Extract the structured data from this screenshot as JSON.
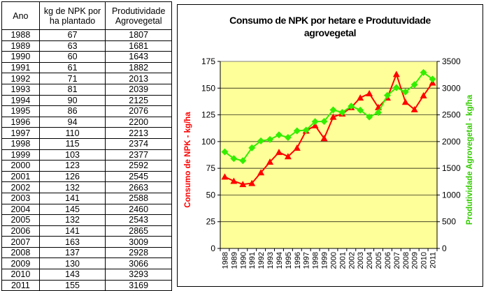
{
  "table": {
    "headers": [
      "Ano",
      "kg de NPK por ha plantado",
      "Produtividade Agrovegetal"
    ],
    "rows": [
      [
        "1988",
        "67",
        "1807"
      ],
      [
        "1989",
        "63",
        "1681"
      ],
      [
        "1990",
        "60",
        "1643"
      ],
      [
        "1991",
        "61",
        "1882"
      ],
      [
        "1992",
        "71",
        "2013"
      ],
      [
        "1993",
        "81",
        "2039"
      ],
      [
        "1994",
        "90",
        "2125"
      ],
      [
        "1995",
        "86",
        "2076"
      ],
      [
        "1996",
        "94",
        "2200"
      ],
      [
        "1997",
        "110",
        "2213"
      ],
      [
        "1998",
        "115",
        "2374"
      ],
      [
        "1999",
        "103",
        "2377"
      ],
      [
        "2000",
        "123",
        "2592"
      ],
      [
        "2001",
        "126",
        "2545"
      ],
      [
        "2002",
        "132",
        "2663"
      ],
      [
        "2003",
        "141",
        "2588"
      ],
      [
        "2004",
        "145",
        "2460"
      ],
      [
        "2005",
        "132",
        "2543"
      ],
      [
        "2006",
        "141",
        "2865"
      ],
      [
        "2007",
        "163",
        "3009"
      ],
      [
        "2008",
        "137",
        "2928"
      ],
      [
        "2009",
        "130",
        "3066"
      ],
      [
        "2010",
        "143",
        "3293"
      ],
      [
        "2011",
        "155",
        "3169"
      ]
    ]
  },
  "chart_data": {
    "type": "line",
    "title": "Consumo de NPK por hetare e Produtuvidade agrovegetal",
    "title_lines": [
      "Consumo de NPK por hetare e Produtuvidade",
      "agrovegetal"
    ],
    "categories": [
      "1988",
      "1989",
      "1990",
      "1991",
      "1992",
      "1993",
      "1994",
      "1995",
      "1996",
      "1997",
      "1998",
      "1999",
      "2000",
      "2001",
      "2002",
      "2003",
      "2004",
      "2005",
      "2006",
      "2007",
      "2008",
      "2009",
      "2010",
      "2011"
    ],
    "ylabel": "Consumo de NPK - kg/ha",
    "y2label": "Produtividade Agrovegetal - kg/ha",
    "ylim": [
      0,
      175
    ],
    "y2lim": [
      0,
      3500
    ],
    "yticks": [
      "0",
      "25",
      "50",
      "75",
      "100",
      "125",
      "150",
      "175"
    ],
    "y2ticks": [
      "0",
      "500",
      "1000",
      "1500",
      "2000",
      "2500",
      "3000",
      "3500"
    ],
    "grid": true,
    "plot_background": "#ffff99",
    "series": [
      {
        "axis": "left",
        "marker": "triangle",
        "color": "#ff0000",
        "values": [
          67,
          63,
          60,
          61,
          71,
          81,
          90,
          86,
          94,
          110,
          115,
          103,
          123,
          126,
          132,
          141,
          145,
          132,
          141,
          163,
          137,
          130,
          143,
          155
        ]
      },
      {
        "axis": "right",
        "marker": "diamond",
        "color": "#33ee00",
        "values": [
          1807,
          1681,
          1643,
          1882,
          2013,
          2039,
          2125,
          2076,
          2200,
          2213,
          2374,
          2377,
          2592,
          2545,
          2663,
          2588,
          2460,
          2543,
          2865,
          3009,
          2928,
          3066,
          3293,
          3169
        ]
      }
    ]
  }
}
